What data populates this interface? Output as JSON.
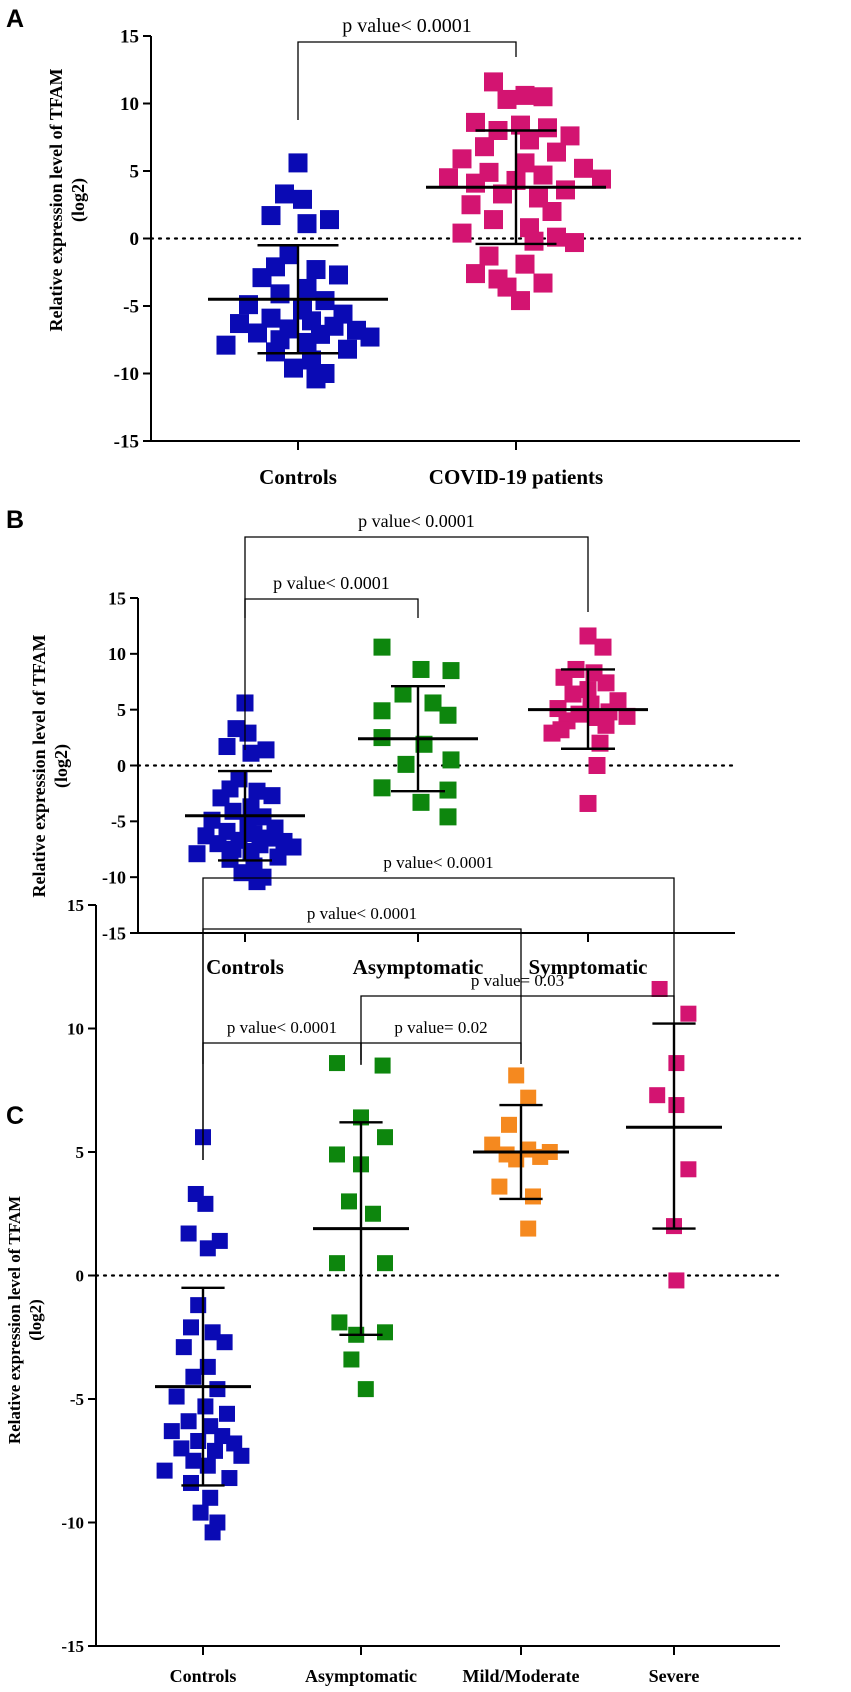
{
  "colors": {
    "controls": "#0a0ab4",
    "asymptomatic": "#0d860d",
    "mild_moderate": "#f5891f",
    "severe_patients": "#d31471",
    "axis": "#000000"
  },
  "chart_data": [
    {
      "id": "A",
      "panel_label": "A",
      "type": "scatter",
      "ylabel": "Relative expression level of TFAM (log2)",
      "ylabel_lines": [
        "Relative expression level of TFAM",
        "(log2)"
      ],
      "ylim": [
        -15,
        15
      ],
      "yticks": [
        -15,
        -10,
        -5,
        0,
        5,
        10,
        15
      ],
      "categories": [
        "Controls",
        "COVID-19 patients"
      ],
      "reference_line": 0,
      "series": [
        {
          "name": "Controls",
          "color_key": "controls",
          "mean": -4.5,
          "sd_low": -8.5,
          "sd_high": -0.5,
          "values": [
            5.6,
            3.3,
            2.9,
            1.7,
            1.4,
            1.1,
            -1.2,
            -2.1,
            -2.3,
            -2.7,
            -2.9,
            -3.7,
            -4.1,
            -4.6,
            -4.9,
            -5.3,
            -5.6,
            -5.9,
            -6.1,
            -6.3,
            -6.5,
            -6.7,
            -6.8,
            -7.0,
            -7.1,
            -7.3,
            -7.5,
            -7.7,
            -7.9,
            -8.2,
            -8.4,
            -9.0,
            -9.6,
            -10.0,
            -10.4
          ],
          "offsets": [
            0,
            -0.3,
            0.1,
            -0.6,
            0.7,
            0.2,
            -0.2,
            -0.5,
            0.4,
            0.9,
            -0.8,
            0.2,
            -0.4,
            0.6,
            -1.1,
            0.1,
            1.0,
            -0.6,
            0.3,
            -1.3,
            0.8,
            -0.2,
            1.3,
            -0.9,
            0.5,
            1.6,
            -0.4,
            0.2,
            -1.6,
            1.1,
            -0.5,
            0.3,
            -0.1,
            0.6,
            0.4
          ]
        },
        {
          "name": "COVID-19 patients",
          "color_key": "severe_patients",
          "mean": 3.8,
          "sd_low": -0.4,
          "sd_high": 8.0,
          "values": [
            11.6,
            10.6,
            10.5,
            10.3,
            8.6,
            8.4,
            8.2,
            8.0,
            7.6,
            7.3,
            6.8,
            6.4,
            5.9,
            5.6,
            5.2,
            4.9,
            4.7,
            4.5,
            4.4,
            4.3,
            4.1,
            3.6,
            3.3,
            3.0,
            2.5,
            2.0,
            1.4,
            0.8,
            0.4,
            0.1,
            -0.2,
            -0.3,
            -1.3,
            -1.9,
            -2.6,
            -3.0,
            -3.3,
            -3.6,
            -4.6
          ],
          "offsets": [
            -0.5,
            0.2,
            0.6,
            -0.2,
            -0.9,
            0.1,
            0.7,
            -0.4,
            1.2,
            0.3,
            -0.7,
            0.9,
            -1.2,
            0.2,
            1.5,
            -0.6,
            0.6,
            -1.5,
            1.9,
            0.0,
            -0.9,
            1.1,
            -0.3,
            0.5,
            -1.0,
            0.8,
            -0.5,
            0.3,
            -1.2,
            0.9,
            0.4,
            1.3,
            -0.6,
            0.2,
            -0.9,
            -0.4,
            0.6,
            -0.2,
            0.1
          ]
        }
      ],
      "brackets": [
        {
          "from": 0,
          "to": 1,
          "label": "p value< 0.0001",
          "level": 0
        }
      ]
    },
    {
      "id": "B",
      "panel_label": "B",
      "type": "scatter",
      "ylabel": "Relative expression level of TFAM (log2)",
      "ylabel_lines": [
        "Relative expression level of TFAM",
        "(log2)"
      ],
      "ylim": [
        -15,
        15
      ],
      "yticks": [
        -15,
        -10,
        -5,
        0,
        5,
        10,
        15
      ],
      "categories": [
        "Controls",
        "Asymptomatic",
        "Symptomatic"
      ],
      "reference_line": 0,
      "series": [
        {
          "name": "Controls",
          "color_key": "controls",
          "mean": -4.5,
          "sd_low": -8.5,
          "sd_high": -0.5,
          "values": [
            5.6,
            3.3,
            2.9,
            1.7,
            1.4,
            1.1,
            -1.2,
            -2.1,
            -2.3,
            -2.7,
            -2.9,
            -3.7,
            -4.1,
            -4.6,
            -4.9,
            -5.3,
            -5.6,
            -5.9,
            -6.1,
            -6.3,
            -6.5,
            -6.7,
            -6.8,
            -7.0,
            -7.1,
            -7.3,
            -7.5,
            -7.7,
            -7.9,
            -8.2,
            -8.4,
            -9.0,
            -9.6,
            -10.0,
            -10.4
          ],
          "offsets": [
            0,
            -0.3,
            0.1,
            -0.6,
            0.7,
            0.2,
            -0.2,
            -0.5,
            0.4,
            0.9,
            -0.8,
            0.2,
            -0.4,
            0.6,
            -1.1,
            0.1,
            1.0,
            -0.6,
            0.3,
            -1.3,
            0.8,
            -0.2,
            1.3,
            -0.9,
            0.5,
            1.6,
            -0.4,
            0.2,
            -1.6,
            1.1,
            -0.5,
            0.3,
            -0.1,
            0.6,
            0.4
          ]
        },
        {
          "name": "Asymptomatic",
          "color_key": "asymptomatic",
          "mean": 2.4,
          "sd_low": -2.3,
          "sd_high": 7.1,
          "values": [
            10.6,
            8.6,
            8.5,
            6.4,
            5.6,
            4.9,
            4.5,
            2.5,
            1.9,
            0.5,
            0.1,
            -2.0,
            -2.2,
            -3.3,
            -4.6
          ],
          "offsets": [
            -1.2,
            0.1,
            1.1,
            -0.5,
            0.5,
            -1.2,
            1.0,
            -1.2,
            0.2,
            1.1,
            -0.4,
            -1.2,
            1.0,
            0.1,
            1.0
          ]
        },
        {
          "name": "Symptomatic",
          "color_key": "severe_patients",
          "mean": 5.0,
          "sd_low": 1.5,
          "sd_high": 8.6,
          "values": [
            11.6,
            10.6,
            8.6,
            8.3,
            7.9,
            7.4,
            6.8,
            6.4,
            5.8,
            5.5,
            5.1,
            4.8,
            4.6,
            4.4,
            4.3,
            4.0,
            3.6,
            3.2,
            2.9,
            2.0,
            0.0,
            -3.4
          ],
          "offsets": [
            0.0,
            0.5,
            -0.4,
            0.2,
            -0.8,
            0.6,
            0.0,
            -0.5,
            1.0,
            0.1,
            -1.0,
            0.7,
            -0.3,
            1.3,
            0.3,
            -0.7,
            0.6,
            -0.9,
            -1.2,
            0.4,
            0.3,
            0.0
          ]
        }
      ],
      "brackets": [
        {
          "from": 0,
          "to": 1,
          "label": "p value< 0.0001",
          "level": 0
        },
        {
          "from": 0,
          "to": 2,
          "label": "p value< 0.0001",
          "level": 1
        }
      ]
    },
    {
      "id": "C",
      "panel_label": "C",
      "type": "scatter",
      "ylabel": "Relative expression level of TFAM (log2)",
      "ylabel_lines": [
        "Relative expression level of TFAM",
        "(log2)"
      ],
      "ylim": [
        -15,
        15
      ],
      "yticks": [
        -15,
        -10,
        -5,
        0,
        5,
        10,
        15
      ],
      "categories": [
        "Controls",
        "Asymptomatic",
        "Mild/Moderate",
        "Severe"
      ],
      "reference_line": 0,
      "series": [
        {
          "name": "Controls",
          "color_key": "controls",
          "mean": -4.5,
          "sd_low": -8.5,
          "sd_high": -0.5,
          "values": [
            5.6,
            3.3,
            2.9,
            1.7,
            1.4,
            1.1,
            -1.2,
            -2.1,
            -2.3,
            -2.7,
            -2.9,
            -3.7,
            -4.1,
            -4.6,
            -4.9,
            -5.3,
            -5.6,
            -5.9,
            -6.1,
            -6.3,
            -6.5,
            -6.7,
            -6.8,
            -7.0,
            -7.1,
            -7.3,
            -7.5,
            -7.7,
            -7.9,
            -8.2,
            -8.4,
            -9.0,
            -9.6,
            -10.0,
            -10.4
          ],
          "offsets": [
            0,
            -0.3,
            0.1,
            -0.6,
            0.7,
            0.2,
            -0.2,
            -0.5,
            0.4,
            0.9,
            -0.8,
            0.2,
            -0.4,
            0.6,
            -1.1,
            0.1,
            1.0,
            -0.6,
            0.3,
            -1.3,
            0.8,
            -0.2,
            1.3,
            -0.9,
            0.5,
            1.6,
            -0.4,
            0.2,
            -1.6,
            1.1,
            -0.5,
            0.3,
            -0.1,
            0.6,
            0.4
          ]
        },
        {
          "name": "Asymptomatic",
          "color_key": "asymptomatic",
          "mean": 1.9,
          "sd_low": -2.4,
          "sd_high": 6.2,
          "values": [
            8.6,
            8.5,
            6.4,
            5.6,
            4.9,
            4.5,
            3.0,
            2.5,
            0.5,
            0.5,
            -1.9,
            -2.3,
            -2.4,
            -3.4,
            -4.6
          ],
          "offsets": [
            -1.0,
            0.9,
            0.0,
            1.0,
            -1.0,
            0.0,
            -0.5,
            0.5,
            -1.0,
            1.0,
            -0.9,
            1.0,
            -0.2,
            -0.4,
            0.2
          ]
        },
        {
          "name": "Mild/Moderate",
          "color_key": "mild_moderate",
          "mean": 5.0,
          "sd_low": 3.1,
          "sd_high": 6.9,
          "values": [
            8.1,
            7.2,
            6.1,
            5.3,
            5.1,
            5.0,
            4.9,
            4.8,
            4.7,
            3.6,
            3.2,
            1.9
          ],
          "offsets": [
            -0.2,
            0.3,
            -0.5,
            -1.2,
            0.3,
            1.2,
            -0.6,
            0.8,
            -0.2,
            -0.9,
            0.5,
            0.3
          ]
        },
        {
          "name": "Severe",
          "color_key": "severe_patients",
          "mean": 6.0,
          "sd_low": 1.9,
          "sd_high": 10.2,
          "values": [
            11.6,
            10.6,
            8.6,
            7.3,
            6.9,
            4.3,
            2.0,
            -0.2
          ],
          "offsets": [
            -0.6,
            0.6,
            0.1,
            -0.7,
            0.1,
            0.6,
            0.0,
            0.1
          ]
        }
      ],
      "brackets": [
        {
          "from": 0,
          "to": 1,
          "label": "p value< 0.0001",
          "level": 0
        },
        {
          "from": 1,
          "to": 2,
          "label": "p value= 0.02",
          "level": 0
        },
        {
          "from": 1,
          "to": 3,
          "label": "p value= 0.03",
          "level": 1
        },
        {
          "from": 0,
          "to": 2,
          "label": "p value< 0.0001",
          "level": 2
        },
        {
          "from": 0,
          "to": 3,
          "label": "p value< 0.0001",
          "level": 3
        }
      ]
    }
  ]
}
